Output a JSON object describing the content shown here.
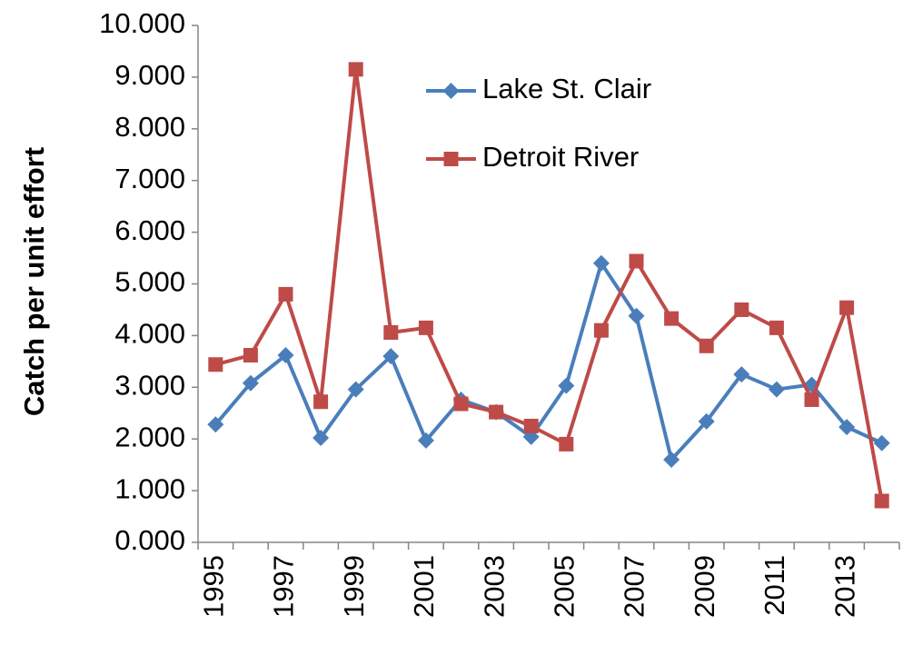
{
  "chart_data": {
    "type": "line",
    "y_label": "Catch per unit effort",
    "categories": [
      "1995",
      null,
      "1997",
      null,
      "1999",
      null,
      "2001",
      null,
      "2003",
      null,
      "2005",
      null,
      "2007",
      null,
      "2009",
      null,
      "2011",
      null,
      "2013",
      null
    ],
    "series": [
      {
        "name": "Lake St. Clair",
        "color": "#4a7ebb",
        "marker": "diamond",
        "values": [
          2.28,
          3.08,
          3.62,
          2.02,
          2.96,
          3.6,
          1.97,
          2.76,
          2.52,
          2.04,
          3.03,
          5.4,
          4.38,
          1.6,
          2.34,
          3.25,
          2.96,
          3.05,
          2.23,
          1.92
        ]
      },
      {
        "name": "Detroit River",
        "color": "#be4b48",
        "marker": "square",
        "values": [
          3.44,
          3.62,
          4.8,
          2.72,
          9.15,
          4.06,
          4.15,
          2.68,
          2.52,
          2.25,
          1.9,
          4.1,
          5.44,
          4.33,
          3.8,
          4.5,
          4.15,
          2.76,
          4.54,
          0.8
        ]
      }
    ],
    "ylim": [
      0,
      10
    ],
    "yticks": [
      {
        "value": 0,
        "label": "0.000"
      },
      {
        "value": 1,
        "label": "1.000"
      },
      {
        "value": 2,
        "label": "2.000"
      },
      {
        "value": 3,
        "label": "3.000"
      },
      {
        "value": 4,
        "label": "4.000"
      },
      {
        "value": 5,
        "label": "5.000"
      },
      {
        "value": 6,
        "label": "6.000"
      },
      {
        "value": 7,
        "label": "7.000"
      },
      {
        "value": 8,
        "label": "8.000"
      },
      {
        "value": 9,
        "label": "9.000"
      },
      {
        "value": 10,
        "label": "10.000"
      }
    ],
    "grid": false,
    "legend": "upper center"
  }
}
